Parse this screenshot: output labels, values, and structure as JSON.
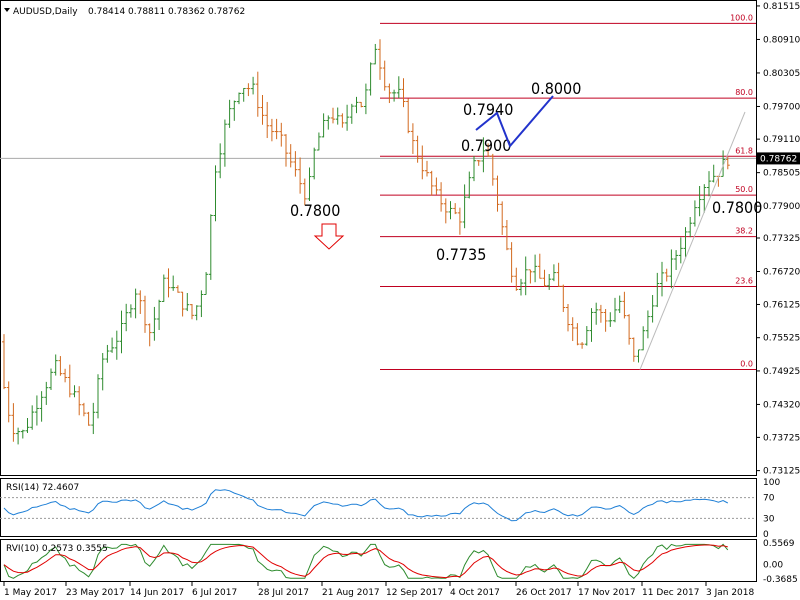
{
  "chart_data": {
    "type": "ohlc",
    "symbol_header": "AUDUSD,Daily",
    "ohlc_header": [
      "0.78414",
      "0.78811",
      "0.78362",
      "0.78762"
    ],
    "last_price": "0.78762",
    "price_ticks": [
      "0.81515",
      "0.80910",
      "0.80305",
      "0.79700",
      "0.79110",
      "0.78505",
      "0.77900",
      "0.77325",
      "0.76720",
      "0.76125",
      "0.75525",
      "0.74925",
      "0.74320",
      "0.73725",
      "0.73125"
    ],
    "ylim": [
      0.731,
      0.8155
    ],
    "x_labels": [
      "1 May 2017",
      "23 May 2017",
      "14 Jun 2017",
      "6 Jul 2017",
      "28 Jul 2017",
      "21 Aug 2017",
      "12 Sep 2017",
      "4 Oct 2017",
      "26 Oct 2017",
      "17 Nov 2017",
      "11 Dec 2017",
      "3 Jan 2018"
    ],
    "fib_levels": [
      {
        "label": "100.0",
        "price": 0.812
      },
      {
        "label": "80.0",
        "price": 0.7985
      },
      {
        "label": "61.8",
        "price": 0.788
      },
      {
        "label": "50.0",
        "price": 0.781
      },
      {
        "label": "38.2",
        "price": 0.7735
      },
      {
        "label": "23.6",
        "price": 0.7645
      },
      {
        "label": "0.0",
        "price": 0.7495
      }
    ],
    "annotations": [
      "0.7800",
      "0.7735",
      "0.7900",
      "0.7940",
      "0.8000",
      "0.7800"
    ],
    "colors": {
      "up": "#2e8b2e",
      "down": "#d2691e",
      "fib": "#c00020",
      "rsi": "#1e7fd6",
      "rvi_main": "#2e8b2e",
      "rvi_signal": "#e00000"
    },
    "rsi": {
      "label": "RSI(14) 72.4607",
      "ticks": [
        "100",
        "70",
        "30",
        "0"
      ],
      "levels": [
        70,
        30
      ]
    },
    "rvi": {
      "label": "RVI(10) 0.2573 0.3555",
      "ticks": [
        "0.5569",
        "0.00",
        "-0.3685"
      ]
    }
  }
}
